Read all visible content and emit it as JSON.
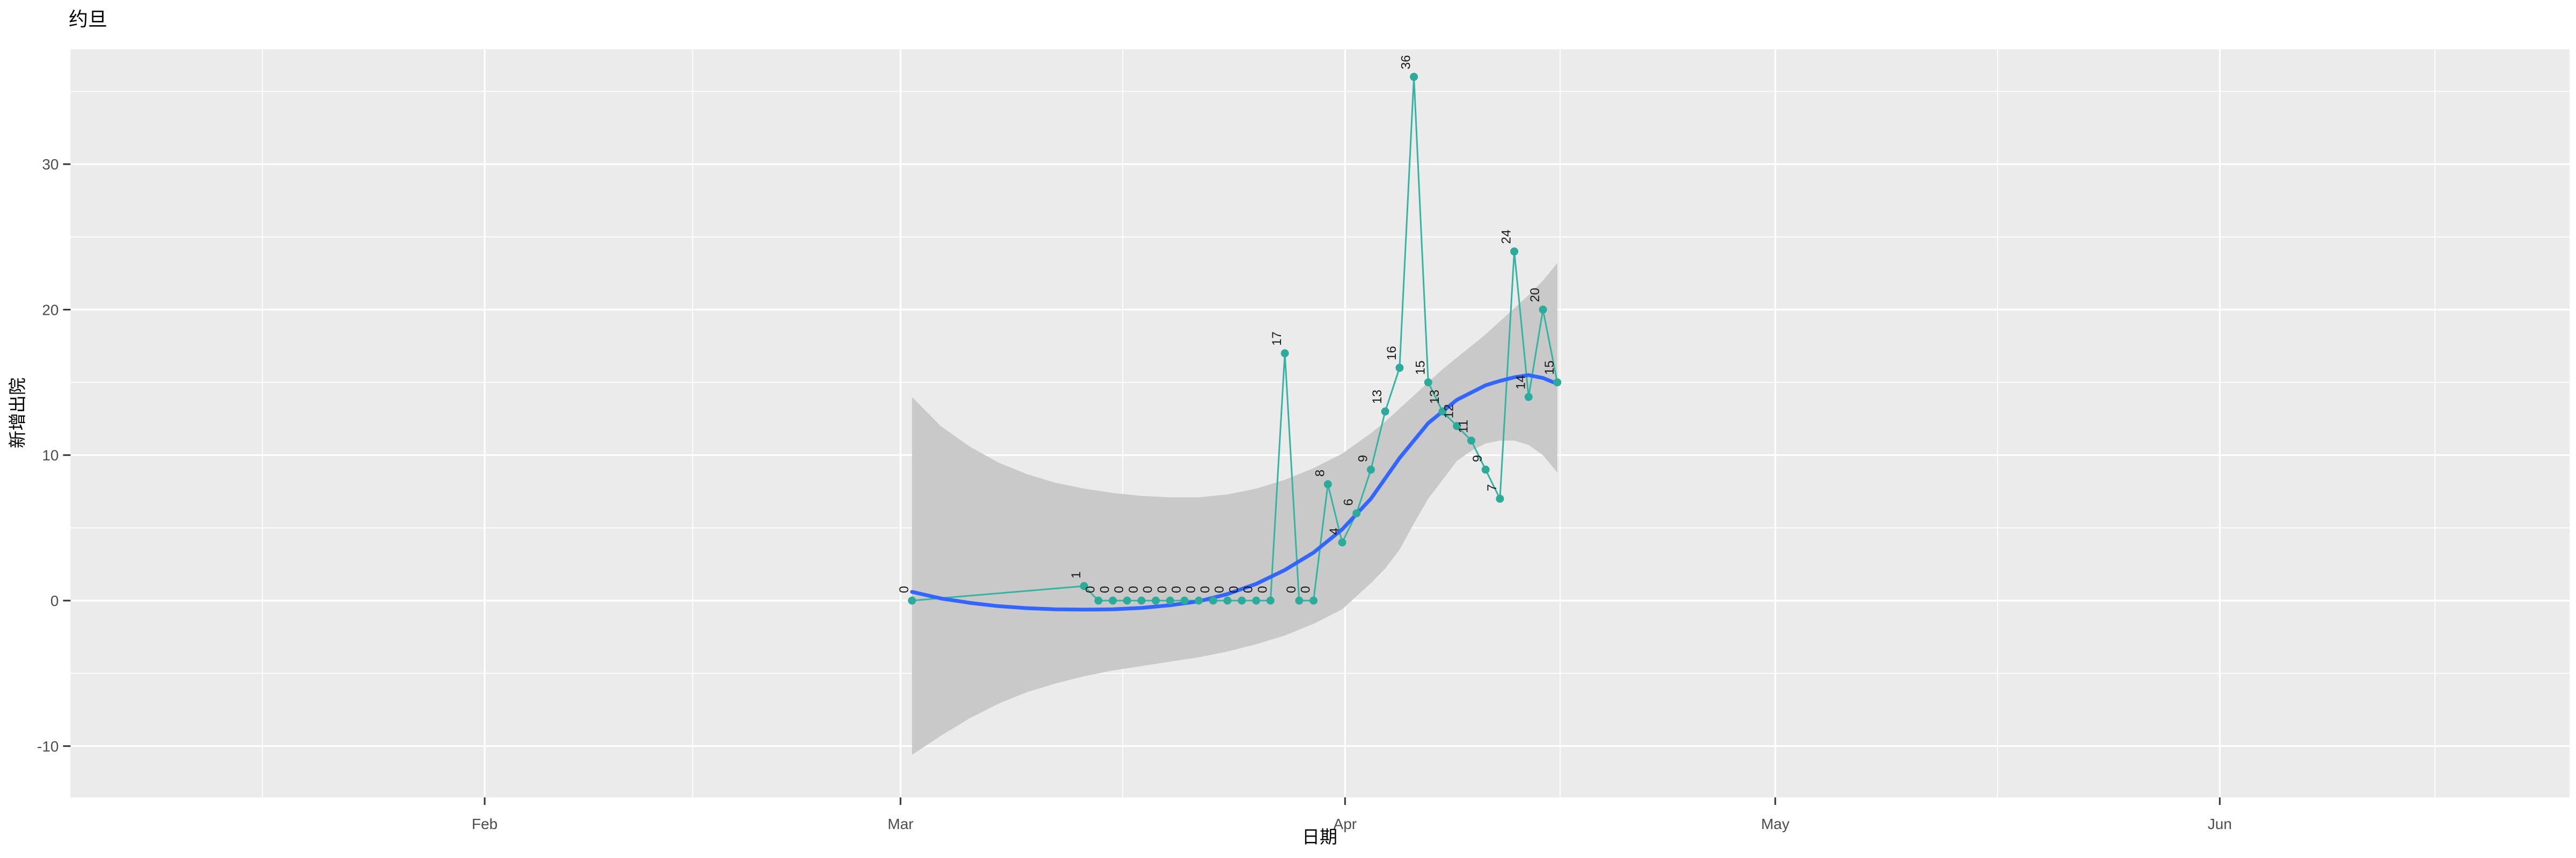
{
  "title": "约旦",
  "axes": {
    "x_title": "日期",
    "y_title": "新增出院",
    "x_tick_labels": [
      "Feb",
      "Mar",
      "Apr",
      "May",
      "Jun"
    ],
    "y_tick_labels": [
      "-10",
      "0",
      "10",
      "20",
      "30"
    ]
  },
  "colors": {
    "panel_bg": "#EBEBEB",
    "grid": "#FFFFFF",
    "ribbon": "#C9C9C9",
    "line": "#35B3A3",
    "point": "#2CAB9B",
    "point_label": "#1A1A1A",
    "smooth": "#3366FF",
    "tick_text": "#4D4D4D",
    "tick_mark": "#333333",
    "title_text": "#000000"
  },
  "chart_data": {
    "type": "line",
    "title": "约旦",
    "xlabel": "日期",
    "ylabel": "新增出院",
    "x_tick_labels": [
      "Feb",
      "Mar",
      "Apr",
      "May",
      "Jun"
    ],
    "x_tick_days_from_mar1": [
      -29,
      0,
      31,
      61,
      92
    ],
    "x_minor_days_from_mar1": [
      -44.5,
      -14.5,
      15.5,
      46.0,
      76.5,
      107.0
    ],
    "y_ticks": [
      -10,
      0,
      10,
      20,
      30
    ],
    "y_minor_ticks": [
      -5,
      5,
      15,
      25,
      35
    ],
    "ylim": [
      -13.5,
      37.9
    ],
    "grid": "white major+minor on grey panel",
    "legend": "none",
    "smoothing": "loess with 95% confidence ribbon",
    "series": [
      {
        "name": "daily-new-discharged",
        "geom": "line+point+text",
        "points": [
          {
            "date": "03-01",
            "value": 0
          },
          {
            "date": "03-13",
            "value": 1
          },
          {
            "date": "03-14",
            "value": 0
          },
          {
            "date": "03-15",
            "value": 0
          },
          {
            "date": "03-16",
            "value": 0
          },
          {
            "date": "03-17",
            "value": 0
          },
          {
            "date": "03-18",
            "value": 0
          },
          {
            "date": "03-19",
            "value": 0
          },
          {
            "date": "03-20",
            "value": 0
          },
          {
            "date": "03-21",
            "value": 0
          },
          {
            "date": "03-22",
            "value": 0
          },
          {
            "date": "03-23",
            "value": 0
          },
          {
            "date": "03-24",
            "value": 0
          },
          {
            "date": "03-25",
            "value": 0
          },
          {
            "date": "03-26",
            "value": 0
          },
          {
            "date": "03-27",
            "value": 17
          },
          {
            "date": "03-28",
            "value": 0
          },
          {
            "date": "03-29",
            "value": 0
          },
          {
            "date": "03-30",
            "value": 8
          },
          {
            "date": "03-31",
            "value": 4
          },
          {
            "date": "04-01",
            "value": 6
          },
          {
            "date": "04-02",
            "value": 9
          },
          {
            "date": "04-03",
            "value": 13
          },
          {
            "date": "04-04",
            "value": 16
          },
          {
            "date": "04-05",
            "value": 36
          },
          {
            "date": "04-06",
            "value": 15
          },
          {
            "date": "04-07",
            "value": 13
          },
          {
            "date": "04-08",
            "value": 12
          },
          {
            "date": "04-09",
            "value": 11
          },
          {
            "date": "04-10",
            "value": 9
          },
          {
            "date": "04-11",
            "value": 7
          },
          {
            "date": "04-12",
            "value": 24
          },
          {
            "date": "04-13",
            "value": 14
          },
          {
            "date": "04-14",
            "value": 20
          },
          {
            "date": "04-15",
            "value": 15
          }
        ]
      },
      {
        "name": "loess-smooth",
        "geom": "smooth-line",
        "points": [
          {
            "day": 0,
            "value": 0.6
          },
          {
            "day": 2,
            "value": 0.15
          },
          {
            "day": 4,
            "value": -0.15
          },
          {
            "day": 6,
            "value": -0.38
          },
          {
            "day": 8,
            "value": -0.52
          },
          {
            "day": 10,
            "value": -0.6
          },
          {
            "day": 12,
            "value": -0.62
          },
          {
            "day": 14,
            "value": -0.6
          },
          {
            "day": 16,
            "value": -0.5
          },
          {
            "day": 18,
            "value": -0.32
          },
          {
            "day": 20,
            "value": -0.05
          },
          {
            "day": 22,
            "value": 0.45
          },
          {
            "day": 24,
            "value": 1.15
          },
          {
            "day": 26,
            "value": 2.1
          },
          {
            "day": 28,
            "value": 3.3
          },
          {
            "day": 30,
            "value": 4.9
          },
          {
            "day": 32,
            "value": 7.0
          },
          {
            "day": 34,
            "value": 9.8
          },
          {
            "day": 36,
            "value": 12.2
          },
          {
            "day": 38,
            "value": 13.8
          },
          {
            "day": 40,
            "value": 14.8
          },
          {
            "day": 41,
            "value": 15.1
          },
          {
            "day": 42,
            "value": 15.35
          },
          {
            "day": 43,
            "value": 15.5
          },
          {
            "day": 44,
            "value": 15.3
          },
          {
            "day": 45,
            "value": 14.9
          }
        ]
      },
      {
        "name": "confidence-ribbon",
        "geom": "ribbon",
        "points": [
          {
            "day": 0,
            "lower": -10.6,
            "upper": 14.0
          },
          {
            "day": 2,
            "lower": -9.3,
            "upper": 12.0
          },
          {
            "day": 4,
            "lower": -8.1,
            "upper": 10.6
          },
          {
            "day": 6,
            "lower": -7.1,
            "upper": 9.5
          },
          {
            "day": 8,
            "lower": -6.3,
            "upper": 8.7
          },
          {
            "day": 10,
            "lower": -5.7,
            "upper": 8.1
          },
          {
            "day": 12,
            "lower": -5.2,
            "upper": 7.7
          },
          {
            "day": 14,
            "lower": -4.8,
            "upper": 7.4
          },
          {
            "day": 16,
            "lower": -4.5,
            "upper": 7.2
          },
          {
            "day": 18,
            "lower": -4.2,
            "upper": 7.1
          },
          {
            "day": 20,
            "lower": -3.9,
            "upper": 7.1
          },
          {
            "day": 22,
            "lower": -3.5,
            "upper": 7.3
          },
          {
            "day": 24,
            "lower": -3.0,
            "upper": 7.7
          },
          {
            "day": 26,
            "lower": -2.4,
            "upper": 8.3
          },
          {
            "day": 28,
            "lower": -1.6,
            "upper": 9.1
          },
          {
            "day": 30,
            "lower": -0.6,
            "upper": 10.1
          },
          {
            "day": 32,
            "lower": 1.2,
            "upper": 11.5
          },
          {
            "day": 33,
            "lower": 2.2,
            "upper": 12.3
          },
          {
            "day": 34,
            "lower": 3.5,
            "upper": 13.2
          },
          {
            "day": 35,
            "lower": 5.3,
            "upper": 14.1
          },
          {
            "day": 36,
            "lower": 7.0,
            "upper": 15.0
          },
          {
            "day": 37,
            "lower": 8.3,
            "upper": 15.9
          },
          {
            "day": 38,
            "lower": 9.6,
            "upper": 16.7
          },
          {
            "day": 39,
            "lower": 10.3,
            "upper": 17.5
          },
          {
            "day": 40,
            "lower": 10.8,
            "upper": 18.3
          },
          {
            "day": 41,
            "lower": 11.0,
            "upper": 19.2
          },
          {
            "day": 42,
            "lower": 11.0,
            "upper": 20.1
          },
          {
            "day": 43,
            "lower": 10.7,
            "upper": 21.0
          },
          {
            "day": 44,
            "lower": 10.0,
            "upper": 22.0
          },
          {
            "day": 45,
            "lower": 8.8,
            "upper": 23.2
          }
        ]
      }
    ]
  }
}
